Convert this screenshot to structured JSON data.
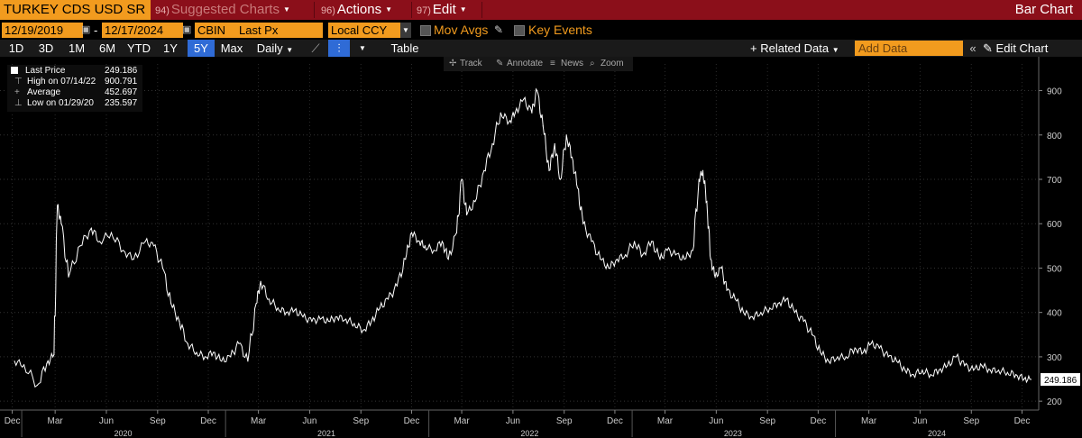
{
  "header": {
    "ticker": "TURKEY CDS USD SR",
    "menus": [
      {
        "num": "94)",
        "label": "Suggested Charts"
      },
      {
        "num": "96)",
        "label": "Actions"
      },
      {
        "num": "97)",
        "label": "Edit"
      }
    ],
    "chart_type": "Bar Chart"
  },
  "controls": {
    "start_date": "12/19/2019",
    "end_date": "12/17/2024",
    "source": "CBIN",
    "field": "Last Px",
    "currency": "Local CCY",
    "mov_avgs": "Mov Avgs",
    "key_events": "Key Events"
  },
  "range_buttons": [
    "1D",
    "3D",
    "1M",
    "6M",
    "YTD",
    "1Y",
    "5Y",
    "Max"
  ],
  "selected_range": "5Y",
  "frequency": "Daily",
  "table_label": "Table",
  "related_data": "+ Related Data",
  "add_data_placeholder": "Add Data",
  "edit_chart": "Edit Chart",
  "chart_tools": [
    "Track",
    "Annotate",
    "News",
    "Zoom"
  ],
  "legend": [
    {
      "label": "Last Price",
      "value": "249.186"
    },
    {
      "label": "High on 07/14/22",
      "value": "900.791"
    },
    {
      "label": "Average",
      "value": "452.697"
    },
    {
      "label": "Low on 01/29/20",
      "value": "235.597"
    }
  ],
  "colors": {
    "accent": "#f29b1e",
    "header_bg": "#8b0f1a",
    "selected": "#2f6bd6",
    "line": "#ffffff"
  },
  "chart_data": {
    "type": "line",
    "series": [
      {
        "name": "Last Price",
        "x": [
          "2019-12-19",
          "2020-01-05",
          "2020-01-29",
          "2020-02-15",
          "2020-02-28",
          "2020-03-05",
          "2020-03-12",
          "2020-03-25",
          "2020-04-15",
          "2020-05-05",
          "2020-05-20",
          "2020-06-10",
          "2020-07-01",
          "2020-07-20",
          "2020-08-10",
          "2020-08-25",
          "2020-09-10",
          "2020-09-25",
          "2020-10-10",
          "2020-10-25",
          "2020-11-10",
          "2020-11-25",
          "2020-12-10",
          "2020-12-25",
          "2021-01-10",
          "2021-01-25",
          "2021-02-10",
          "2021-02-25",
          "2021-03-05",
          "2021-03-20",
          "2021-04-05",
          "2021-04-20",
          "2021-05-05",
          "2021-05-20",
          "2021-06-05",
          "2021-06-20",
          "2021-07-05",
          "2021-07-20",
          "2021-08-05",
          "2021-08-20",
          "2021-09-05",
          "2021-09-20",
          "2021-10-05",
          "2021-10-20",
          "2021-11-05",
          "2021-11-20",
          "2021-12-01",
          "2021-12-15",
          "2021-12-25",
          "2022-01-10",
          "2022-01-25",
          "2022-02-05",
          "2022-02-20",
          "2022-03-01",
          "2022-03-10",
          "2022-03-25",
          "2022-04-10",
          "2022-04-25",
          "2022-05-10",
          "2022-05-25",
          "2022-06-05",
          "2022-06-20",
          "2022-07-05",
          "2022-07-14",
          "2022-07-25",
          "2022-08-05",
          "2022-08-15",
          "2022-08-25",
          "2022-09-05",
          "2022-09-15",
          "2022-09-25",
          "2022-10-05",
          "2022-10-20",
          "2022-11-05",
          "2022-11-20",
          "2022-12-05",
          "2022-12-20",
          "2023-01-05",
          "2023-01-20",
          "2023-02-05",
          "2023-02-20",
          "2023-03-05",
          "2023-03-20",
          "2023-04-05",
          "2023-04-20",
          "2023-05-01",
          "2023-05-08",
          "2023-05-15",
          "2023-05-22",
          "2023-05-30",
          "2023-06-10",
          "2023-06-20",
          "2023-07-05",
          "2023-07-20",
          "2023-08-05",
          "2023-08-20",
          "2023-09-05",
          "2023-09-20",
          "2023-10-05",
          "2023-10-20",
          "2023-11-05",
          "2023-11-20",
          "2023-12-05",
          "2023-12-20",
          "2024-01-05",
          "2024-01-20",
          "2024-02-05",
          "2024-02-20",
          "2024-03-05",
          "2024-03-20",
          "2024-04-05",
          "2024-04-20",
          "2024-05-05",
          "2024-05-20",
          "2024-06-05",
          "2024-06-20",
          "2024-07-05",
          "2024-07-20",
          "2024-08-05",
          "2024-08-20",
          "2024-09-05",
          "2024-09-20",
          "2024-10-05",
          "2024-10-20",
          "2024-11-05",
          "2024-11-20",
          "2024-12-05",
          "2024-12-17"
        ],
        "y": [
          290,
          282,
          236,
          285,
          305,
          640,
          600,
          480,
          550,
          590,
          560,
          580,
          540,
          520,
          560,
          550,
          500,
          420,
          380,
          330,
          310,
          300,
          310,
          290,
          300,
          330,
          290,
          420,
          470,
          430,
          410,
          400,
          405,
          390,
          380,
          385,
          380,
          390,
          385,
          375,
          360,
          380,
          410,
          430,
          460,
          520,
          580,
          560,
          550,
          540,
          560,
          520,
          580,
          700,
          620,
          650,
          720,
          780,
          850,
          830,
          850,
          880,
          850,
          900,
          820,
          720,
          780,
          700,
          800,
          750,
          680,
          600,
          560,
          520,
          500,
          520,
          530,
          560,
          530,
          560,
          520,
          540,
          530,
          520,
          540,
          700,
          720,
          650,
          520,
          480,
          500,
          450,
          430,
          400,
          390,
          400,
          410,
          420,
          430,
          400,
          380,
          350,
          310,
          290,
          300,
          300,
          320,
          310,
          330,
          320,
          300,
          290,
          270,
          260,
          270,
          260,
          270,
          280,
          300,
          280,
          270,
          280,
          270,
          270,
          265,
          260,
          250,
          249
        ]
      }
    ],
    "ylim": [
      180,
      960
    ],
    "yticks": [
      200,
      300,
      400,
      500,
      600,
      700,
      800,
      900
    ],
    "month_ticks": [
      {
        "date": "2019-12-15",
        "label": "Dec"
      },
      {
        "date": "2020-03-01",
        "label": "Mar"
      },
      {
        "date": "2020-06-01",
        "label": "Jun"
      },
      {
        "date": "2020-09-01",
        "label": "Sep"
      },
      {
        "date": "2020-12-01",
        "label": "Dec"
      },
      {
        "date": "2021-03-01",
        "label": "Mar"
      },
      {
        "date": "2021-06-01",
        "label": "Jun"
      },
      {
        "date": "2021-09-01",
        "label": "Sep"
      },
      {
        "date": "2021-12-01",
        "label": "Dec"
      },
      {
        "date": "2022-03-01",
        "label": "Mar"
      },
      {
        "date": "2022-06-01",
        "label": "Jun"
      },
      {
        "date": "2022-09-01",
        "label": "Sep"
      },
      {
        "date": "2022-12-01",
        "label": "Dec"
      },
      {
        "date": "2023-03-01",
        "label": "Mar"
      },
      {
        "date": "2023-06-01",
        "label": "Jun"
      },
      {
        "date": "2023-09-01",
        "label": "Sep"
      },
      {
        "date": "2023-12-01",
        "label": "Dec"
      },
      {
        "date": "2024-03-01",
        "label": "Mar"
      },
      {
        "date": "2024-06-01",
        "label": "Jun"
      },
      {
        "date": "2024-09-01",
        "label": "Sep"
      },
      {
        "date": "2024-12-01",
        "label": "Dec"
      }
    ],
    "year_ticks": [
      {
        "date": "2020-07-01",
        "label": "2020"
      },
      {
        "date": "2021-07-01",
        "label": "2021"
      },
      {
        "date": "2022-07-01",
        "label": "2022"
      },
      {
        "date": "2023-07-01",
        "label": "2023"
      },
      {
        "date": "2024-07-01",
        "label": "2024"
      }
    ],
    "last_value_label": "249.186",
    "grid": true
  }
}
